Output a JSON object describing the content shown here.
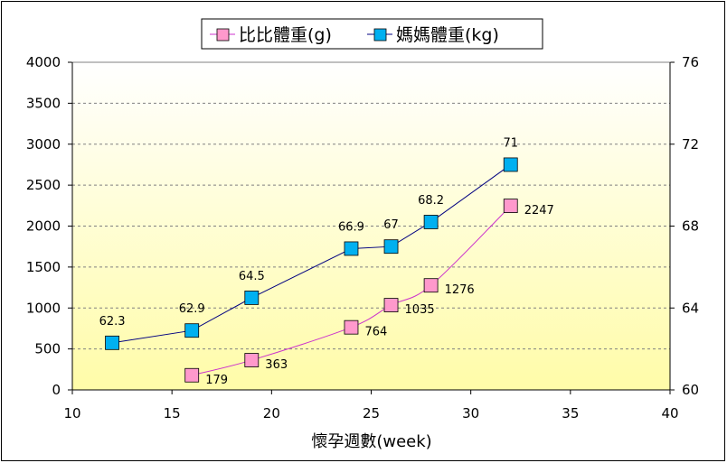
{
  "chart_data": {
    "type": "line",
    "title": "",
    "xlabel": "懷孕週數(week)",
    "ylabel": "",
    "y2label": "",
    "xlim": [
      10,
      40
    ],
    "ylim": [
      0,
      4000
    ],
    "y2lim": [
      60,
      76
    ],
    "x_ticks": [
      10,
      15,
      20,
      25,
      30,
      35,
      40
    ],
    "y_ticks": [
      0,
      500,
      1000,
      1500,
      2000,
      2500,
      3000,
      3500,
      4000
    ],
    "y2_ticks": [
      60,
      64,
      68,
      72,
      76
    ],
    "grid": true,
    "legend_position": "top",
    "plot_background": [
      "#ffffff",
      "#fffca8"
    ],
    "series": [
      {
        "name": "比比體重(g)",
        "axis": "left",
        "color": "#cc33cc",
        "marker_color": "#ff99cc",
        "marker": "square",
        "x": [
          16,
          19,
          24,
          26,
          28,
          32
        ],
        "y": [
          179,
          363,
          764,
          1035,
          1276,
          2247
        ],
        "labels": [
          "179",
          "363",
          "764",
          "1035",
          "1276",
          "2247"
        ]
      },
      {
        "name": "媽媽體重(kg)",
        "axis": "right",
        "color": "#000080",
        "marker_color": "#00b0f0",
        "marker": "square",
        "x": [
          12,
          16,
          19,
          24,
          26,
          28,
          32
        ],
        "y": [
          62.3,
          62.9,
          64.5,
          66.9,
          67,
          68.2,
          71
        ],
        "labels": [
          "62.3",
          "62.9",
          "64.5",
          "66.9",
          "67",
          "68.2",
          "71"
        ]
      }
    ]
  }
}
